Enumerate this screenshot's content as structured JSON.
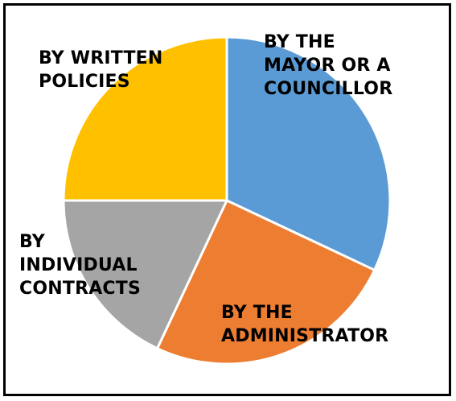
{
  "chart_data": {
    "type": "pie",
    "title": "",
    "slices": [
      {
        "label": "BY THE\nMAYOR OR A\nCOUNCILLOR",
        "value": 32,
        "color": "#5B9BD5"
      },
      {
        "label": "BY THE\nADMINISTRATOR",
        "value": 25,
        "color": "#ED7D31"
      },
      {
        "label": "BY\nINDIVIDUAL\nCONTRACTS",
        "value": 18,
        "color": "#A5A5A5"
      },
      {
        "label": "BY WRITTEN\nPOLICIES",
        "value": 25,
        "color": "#FFC000"
      }
    ],
    "start_angle_deg": 0,
    "direction": "clockwise",
    "legend": "none"
  }
}
